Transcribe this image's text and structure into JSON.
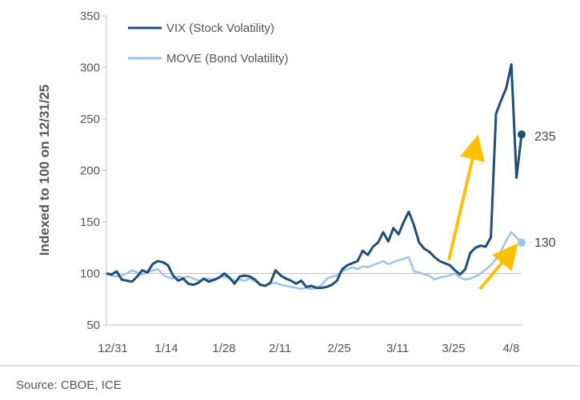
{
  "chart_data": {
    "type": "line",
    "title": "",
    "xlabel": "",
    "ylabel": "Indexed to 100 on 12/31/25",
    "ylim": [
      50,
      350
    ],
    "yticks": [
      50,
      100,
      150,
      200,
      250,
      300,
      350
    ],
    "xtick_labels": [
      "12/31",
      "1/14",
      "1/28",
      "2/11",
      "2/25",
      "3/11",
      "3/25",
      "4/8"
    ],
    "reference_line": 100,
    "legend_position": "top-left",
    "series": [
      {
        "name": "VIX (Stock Volatility)",
        "color": "#1f4e79",
        "end_label": "235",
        "points": [
          [
            0,
            100
          ],
          [
            1,
            99
          ],
          [
            2,
            102
          ],
          [
            3,
            94
          ],
          [
            4,
            93
          ],
          [
            5,
            92
          ],
          [
            6,
            97
          ],
          [
            7,
            103
          ],
          [
            8,
            101
          ],
          [
            9,
            109
          ],
          [
            10,
            112
          ],
          [
            11,
            111
          ],
          [
            12,
            108
          ],
          [
            13,
            98
          ],
          [
            14,
            93
          ],
          [
            15,
            95
          ],
          [
            16,
            90
          ],
          [
            17,
            89
          ],
          [
            18,
            91
          ],
          [
            19,
            95
          ],
          [
            20,
            92
          ],
          [
            21,
            94
          ],
          [
            22,
            96
          ],
          [
            23,
            100
          ],
          [
            24,
            96
          ],
          [
            25,
            90
          ],
          [
            26,
            97
          ],
          [
            27,
            98
          ],
          [
            28,
            97
          ],
          [
            29,
            94
          ],
          [
            30,
            89
          ],
          [
            31,
            88
          ],
          [
            32,
            91
          ],
          [
            33,
            103
          ],
          [
            34,
            98
          ],
          [
            35,
            95
          ],
          [
            36,
            93
          ],
          [
            37,
            90
          ],
          [
            38,
            93
          ],
          [
            39,
            87
          ],
          [
            40,
            88
          ],
          [
            41,
            86
          ],
          [
            42,
            86
          ],
          [
            43,
            87
          ],
          [
            44,
            89
          ],
          [
            45,
            93
          ],
          [
            46,
            104
          ],
          [
            47,
            108
          ],
          [
            48,
            110
          ],
          [
            49,
            112
          ],
          [
            50,
            122
          ],
          [
            51,
            118
          ],
          [
            52,
            126
          ],
          [
            53,
            130
          ],
          [
            54,
            140
          ],
          [
            55,
            131
          ],
          [
            56,
            144
          ],
          [
            57,
            138
          ],
          [
            58,
            150
          ],
          [
            59,
            160
          ],
          [
            60,
            147
          ],
          [
            61,
            130
          ],
          [
            62,
            124
          ],
          [
            63,
            121
          ],
          [
            64,
            116
          ],
          [
            65,
            112
          ],
          [
            66,
            110
          ],
          [
            67,
            108
          ],
          [
            68,
            103
          ],
          [
            69,
            99
          ],
          [
            70,
            104
          ],
          [
            71,
            120
          ],
          [
            72,
            125
          ],
          [
            73,
            127
          ],
          [
            74,
            126
          ],
          [
            75,
            135
          ],
          [
            76,
            255
          ],
          [
            77,
            268
          ],
          [
            78,
            280
          ],
          [
            79,
            303
          ],
          [
            80,
            193
          ],
          [
            81,
            235
          ]
        ]
      },
      {
        "name": "MOVE (Bond Volatility)",
        "color": "#9dc3e6",
        "end_label": "130",
        "points": [
          [
            0,
            100
          ],
          [
            1,
            98
          ],
          [
            2,
            97
          ],
          [
            3,
            98
          ],
          [
            4,
            100
          ],
          [
            5,
            103
          ],
          [
            6,
            101
          ],
          [
            7,
            99
          ],
          [
            8,
            101
          ],
          [
            9,
            103
          ],
          [
            10,
            104
          ],
          [
            11,
            99
          ],
          [
            12,
            96
          ],
          [
            13,
            95
          ],
          [
            14,
            97
          ],
          [
            15,
            96
          ],
          [
            16,
            97
          ],
          [
            17,
            95
          ],
          [
            18,
            93
          ],
          [
            19,
            94
          ],
          [
            20,
            95
          ],
          [
            21,
            93
          ],
          [
            22,
            96
          ],
          [
            23,
            97
          ],
          [
            24,
            95
          ],
          [
            25,
            93
          ],
          [
            26,
            94
          ],
          [
            27,
            93
          ],
          [
            28,
            95
          ],
          [
            29,
            92
          ],
          [
            30,
            90
          ],
          [
            31,
            88
          ],
          [
            32,
            90
          ],
          [
            33,
            91
          ],
          [
            34,
            89
          ],
          [
            35,
            88
          ],
          [
            36,
            87
          ],
          [
            37,
            86
          ],
          [
            38,
            85
          ],
          [
            39,
            86
          ],
          [
            40,
            85
          ],
          [
            41,
            86
          ],
          [
            42,
            89
          ],
          [
            43,
            95
          ],
          [
            44,
            97
          ],
          [
            45,
            98
          ],
          [
            46,
            102
          ],
          [
            47,
            104
          ],
          [
            48,
            106
          ],
          [
            49,
            104
          ],
          [
            50,
            107
          ],
          [
            51,
            106
          ],
          [
            52,
            108
          ],
          [
            53,
            110
          ],
          [
            54,
            112
          ],
          [
            55,
            109
          ],
          [
            56,
            111
          ],
          [
            57,
            113
          ],
          [
            58,
            114
          ],
          [
            59,
            116
          ],
          [
            60,
            102
          ],
          [
            61,
            101
          ],
          [
            62,
            99
          ],
          [
            63,
            98
          ],
          [
            64,
            94
          ],
          [
            65,
            96
          ],
          [
            66,
            97
          ],
          [
            67,
            98
          ],
          [
            68,
            100
          ],
          [
            69,
            96
          ],
          [
            70,
            94
          ],
          [
            71,
            95
          ],
          [
            72,
            97
          ],
          [
            73,
            100
          ],
          [
            74,
            104
          ],
          [
            75,
            108
          ],
          [
            76,
            114
          ],
          [
            77,
            122
          ],
          [
            78,
            132
          ],
          [
            79,
            140
          ],
          [
            80,
            135
          ],
          [
            81,
            130
          ]
        ]
      }
    ],
    "annotations": [
      {
        "type": "arrow",
        "color": "#ffc000",
        "description": "upward arrow near VIX spike"
      },
      {
        "type": "arrow",
        "color": "#ffc000",
        "description": "upward arrow near MOVE rise"
      }
    ]
  },
  "source": "Source: CBOE, ICE"
}
